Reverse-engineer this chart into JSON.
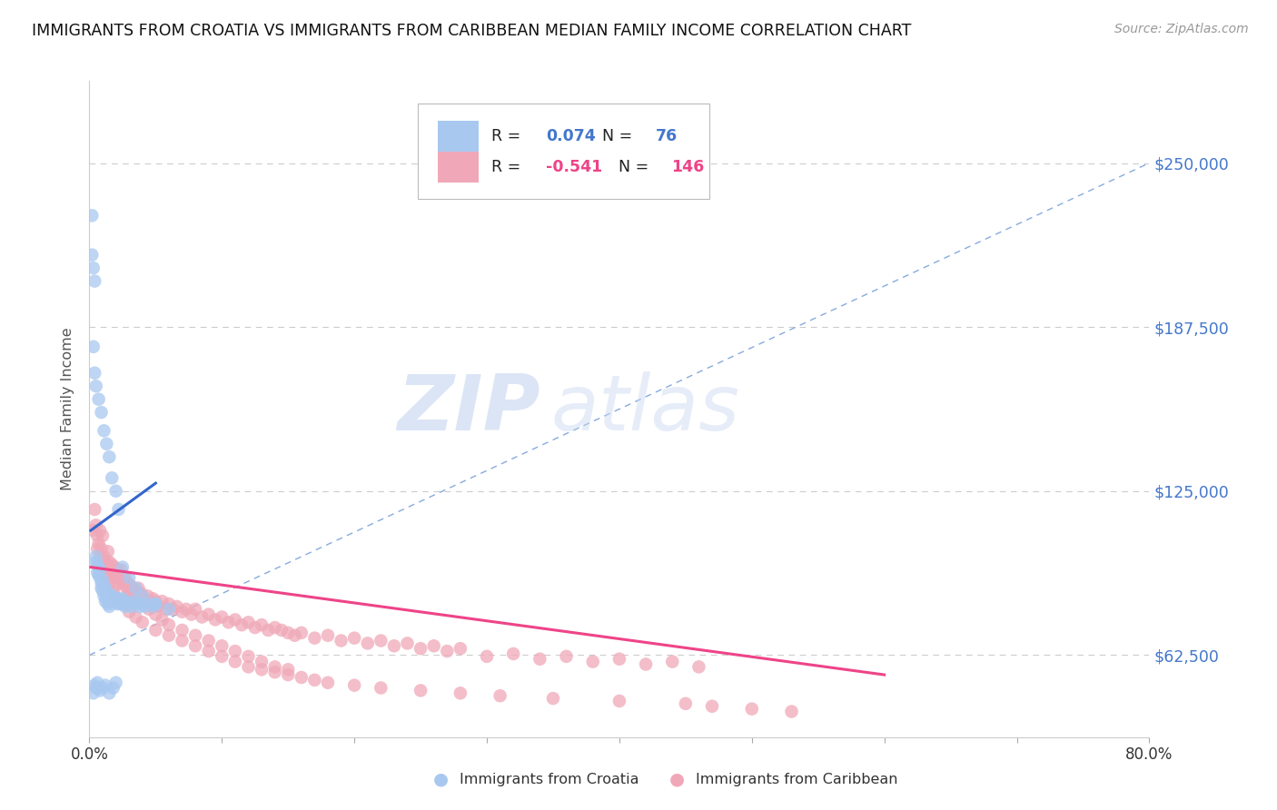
{
  "title": "IMMIGRANTS FROM CROATIA VS IMMIGRANTS FROM CARIBBEAN MEDIAN FAMILY INCOME CORRELATION CHART",
  "source": "Source: ZipAtlas.com",
  "ylabel": "Median Family Income",
  "xlim": [
    0,
    0.8
  ],
  "ylim": [
    31250,
    281250
  ],
  "yticks": [
    62500,
    125000,
    187500,
    250000
  ],
  "ytick_labels": [
    "$62,500",
    "$125,000",
    "$187,500",
    "$250,000"
  ],
  "xticks": [
    0.0,
    0.1,
    0.2,
    0.3,
    0.4,
    0.5,
    0.6,
    0.7,
    0.8
  ],
  "croatia_color": "#a8c8f0",
  "caribbean_color": "#f0a8b8",
  "croatia_line_color": "#3366cc",
  "caribbean_line_color": "#ee4488",
  "diag_line_color": "#88aadd",
  "legend_R_croatia": "0.074",
  "legend_N_croatia": "76",
  "legend_R_caribbean": "-0.541",
  "legend_N_caribbean": "146",
  "label_croatia": "Immigrants from Croatia",
  "label_caribbean": "Immigrants from Caribbean",
  "watermark_zip": "ZIP",
  "watermark_atlas": "atlas",
  "title_color": "#111111",
  "ytick_color": "#4477cc",
  "title_fontsize": 12.5,
  "croatia_scatter_x": [
    0.002,
    0.002,
    0.003,
    0.004,
    0.005,
    0.005,
    0.006,
    0.006,
    0.007,
    0.007,
    0.008,
    0.008,
    0.009,
    0.009,
    0.01,
    0.01,
    0.011,
    0.011,
    0.012,
    0.012,
    0.013,
    0.013,
    0.014,
    0.014,
    0.015,
    0.015,
    0.016,
    0.017,
    0.018,
    0.019,
    0.02,
    0.021,
    0.022,
    0.023,
    0.024,
    0.025,
    0.026,
    0.027,
    0.028,
    0.03,
    0.032,
    0.034,
    0.036,
    0.038,
    0.04,
    0.042,
    0.045,
    0.048,
    0.05,
    0.003,
    0.004,
    0.005,
    0.007,
    0.009,
    0.011,
    0.013,
    0.015,
    0.017,
    0.02,
    0.022,
    0.003,
    0.004,
    0.005,
    0.006,
    0.008,
    0.01,
    0.012,
    0.015,
    0.018,
    0.02,
    0.025,
    0.03,
    0.035,
    0.04,
    0.05,
    0.06
  ],
  "croatia_scatter_y": [
    230000,
    215000,
    210000,
    205000,
    100000,
    98000,
    97000,
    94000,
    96000,
    93000,
    92000,
    95000,
    88000,
    90000,
    87000,
    91000,
    89000,
    85000,
    88000,
    83000,
    87000,
    84000,
    86000,
    82000,
    85000,
    81000,
    84000,
    83000,
    85000,
    84000,
    83000,
    82000,
    84000,
    82000,
    83000,
    84000,
    82000,
    81000,
    83000,
    82000,
    81000,
    83000,
    82000,
    81000,
    82000,
    81000,
    82000,
    81000,
    82000,
    180000,
    170000,
    165000,
    160000,
    155000,
    148000,
    143000,
    138000,
    130000,
    125000,
    118000,
    48000,
    51000,
    50000,
    52000,
    49000,
    50000,
    51000,
    48000,
    50000,
    52000,
    96000,
    92000,
    88000,
    85000,
    82000,
    80000
  ],
  "caribbean_scatter_x": [
    0.003,
    0.004,
    0.005,
    0.006,
    0.007,
    0.008,
    0.009,
    0.01,
    0.011,
    0.012,
    0.013,
    0.014,
    0.015,
    0.016,
    0.017,
    0.018,
    0.019,
    0.02,
    0.021,
    0.022,
    0.023,
    0.024,
    0.025,
    0.026,
    0.027,
    0.028,
    0.029,
    0.03,
    0.031,
    0.032,
    0.033,
    0.034,
    0.035,
    0.036,
    0.037,
    0.038,
    0.039,
    0.04,
    0.042,
    0.044,
    0.046,
    0.048,
    0.05,
    0.052,
    0.055,
    0.058,
    0.06,
    0.063,
    0.066,
    0.07,
    0.073,
    0.077,
    0.08,
    0.085,
    0.09,
    0.095,
    0.1,
    0.105,
    0.11,
    0.115,
    0.12,
    0.125,
    0.13,
    0.135,
    0.14,
    0.145,
    0.15,
    0.155,
    0.16,
    0.17,
    0.18,
    0.19,
    0.2,
    0.21,
    0.22,
    0.23,
    0.24,
    0.25,
    0.26,
    0.27,
    0.28,
    0.3,
    0.32,
    0.34,
    0.36,
    0.38,
    0.4,
    0.42,
    0.44,
    0.46,
    0.01,
    0.015,
    0.02,
    0.025,
    0.03,
    0.035,
    0.04,
    0.045,
    0.05,
    0.055,
    0.06,
    0.07,
    0.08,
    0.09,
    0.1,
    0.11,
    0.12,
    0.13,
    0.14,
    0.15,
    0.006,
    0.008,
    0.01,
    0.012,
    0.015,
    0.018,
    0.021,
    0.025,
    0.03,
    0.035,
    0.04,
    0.05,
    0.06,
    0.07,
    0.08,
    0.09,
    0.1,
    0.11,
    0.12,
    0.13,
    0.14,
    0.15,
    0.16,
    0.17,
    0.18,
    0.2,
    0.22,
    0.25,
    0.28,
    0.31,
    0.35,
    0.4,
    0.45,
    0.47,
    0.5,
    0.53
  ],
  "caribbean_scatter_y": [
    110000,
    118000,
    112000,
    108000,
    105000,
    110000,
    103000,
    108000,
    100000,
    98000,
    97000,
    102000,
    98000,
    95000,
    97000,
    93000,
    96000,
    92000,
    95000,
    94000,
    92000,
    95000,
    93000,
    90000,
    92000,
    88000,
    90000,
    87000,
    89000,
    86000,
    88000,
    85000,
    87000,
    85000,
    88000,
    84000,
    86000,
    85000,
    83000,
    85000,
    82000,
    84000,
    83000,
    81000,
    83000,
    80000,
    82000,
    80000,
    81000,
    79000,
    80000,
    78000,
    80000,
    77000,
    78000,
    76000,
    77000,
    75000,
    76000,
    74000,
    75000,
    73000,
    74000,
    72000,
    73000,
    72000,
    71000,
    70000,
    71000,
    69000,
    70000,
    68000,
    69000,
    67000,
    68000,
    66000,
    67000,
    65000,
    66000,
    64000,
    65000,
    62000,
    63000,
    61000,
    62000,
    60000,
    61000,
    59000,
    60000,
    58000,
    96000,
    92000,
    89000,
    90000,
    86000,
    84000,
    82000,
    80000,
    78000,
    76000,
    74000,
    72000,
    70000,
    68000,
    66000,
    64000,
    62000,
    60000,
    58000,
    57000,
    103000,
    100000,
    97000,
    93000,
    90000,
    87000,
    84000,
    82000,
    79000,
    77000,
    75000,
    72000,
    70000,
    68000,
    66000,
    64000,
    62000,
    60000,
    58000,
    57000,
    56000,
    55000,
    54000,
    53000,
    52000,
    51000,
    50000,
    49000,
    48000,
    47000,
    46000,
    45000,
    44000,
    43000,
    42000,
    41000
  ],
  "croatia_line_x": [
    0.001,
    0.05
  ],
  "croatia_line_y": [
    110000,
    128000
  ],
  "caribbean_line_x": [
    0.001,
    0.6
  ],
  "caribbean_line_y": [
    96000,
    55000
  ],
  "diag_line_x": [
    0.0,
    0.8
  ],
  "diag_line_y": [
    62500,
    250000
  ]
}
